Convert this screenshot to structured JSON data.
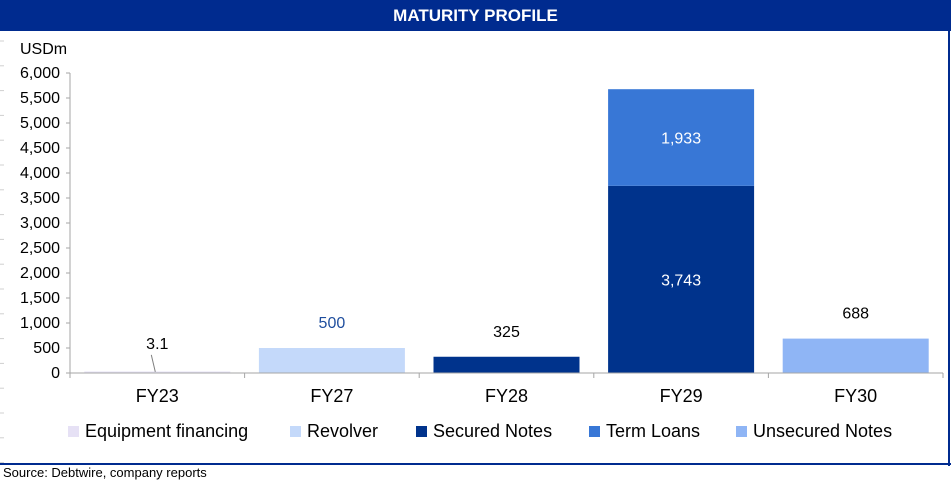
{
  "header": {
    "title": "MATURITY PROFILE"
  },
  "footer": {
    "source": "Source: Debtwire, company reports"
  },
  "chart_data": {
    "type": "bar",
    "stacked": true,
    "title": "MATURITY PROFILE",
    "ylabel": "USDm",
    "xlabel": "",
    "ylim": [
      0,
      6000
    ],
    "yticks": [
      "0",
      "500",
      "1,000",
      "1,500",
      "2,000",
      "2,500",
      "3,000",
      "3,500",
      "4,000",
      "4,500",
      "5,000",
      "5,500",
      "6,000"
    ],
    "grid": false,
    "legend_position": "bottom",
    "categories": [
      "FY23",
      "FY27",
      "FY28",
      "FY29",
      "FY30"
    ],
    "series": [
      {
        "name": "Equipment financing",
        "color": "#e6e1f5",
        "values": [
          3.1,
          0,
          0,
          0,
          0
        ],
        "labels": [
          "3.1",
          "",
          "",
          "",
          ""
        ]
      },
      {
        "name": "Revolver",
        "color": "#c4d9fa",
        "values": [
          0,
          500,
          0,
          0,
          0
        ],
        "labels": [
          "",
          "500",
          "",
          "",
          ""
        ]
      },
      {
        "name": "Secured Notes",
        "color": "#00338c",
        "values": [
          0,
          0,
          325,
          3743,
          0
        ],
        "labels": [
          "",
          "",
          "325",
          "3,743",
          ""
        ]
      },
      {
        "name": "Term Loans",
        "color": "#3877d6",
        "values": [
          0,
          0,
          0,
          1933,
          0
        ],
        "labels": [
          "",
          "",
          "",
          "1,933",
          ""
        ]
      },
      {
        "name": "Unsecured Notes",
        "color": "#8fb5f5",
        "values": [
          0,
          0,
          0,
          0,
          688
        ],
        "labels": [
          "",
          "",
          "",
          "",
          "688"
        ]
      }
    ]
  }
}
